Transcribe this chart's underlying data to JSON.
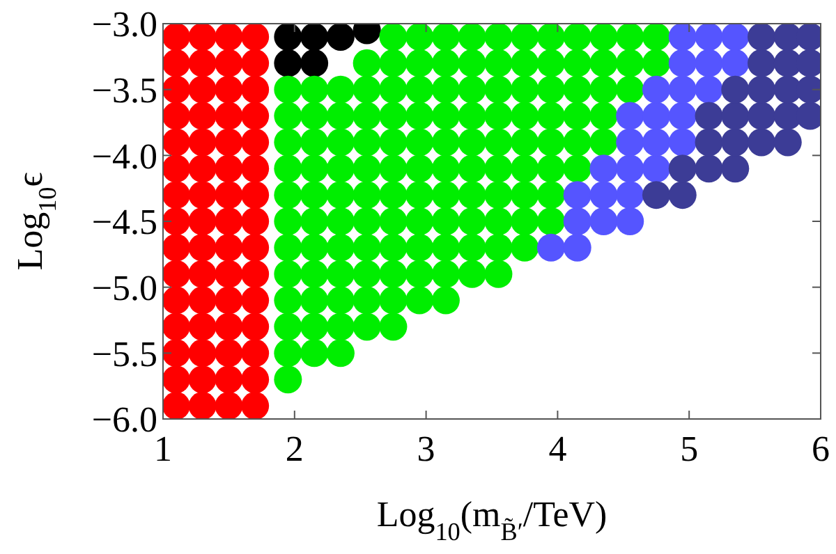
{
  "chart_data": {
    "type": "scatter",
    "xlabel": "Log$_{10}$(m$_{B̃′}$/TeV)",
    "ylabel": "Log$_{10}$ϵ",
    "xlim": [
      1,
      6
    ],
    "ylim": [
      -6,
      -3
    ],
    "xticks": [
      1,
      2,
      3,
      4,
      5,
      6
    ],
    "yticks": [
      {
        "value": -6,
        "label": "−6.0"
      },
      {
        "value": -5.5,
        "label": "−5.5"
      },
      {
        "value": -5,
        "label": "−5.0"
      },
      {
        "value": -4.5,
        "label": "−4.5"
      },
      {
        "value": -4,
        "label": "−4.0"
      },
      {
        "value": -3.5,
        "label": "−3.5"
      },
      {
        "value": -3,
        "label": "−3.0"
      }
    ],
    "marker": "circle",
    "grid": false,
    "series": [
      {
        "color": "#ff0000",
        "x": [
          1.1,
          1.1,
          1.1,
          1.1,
          1.1,
          1.1,
          1.1,
          1.1,
          1.1,
          1.1,
          1.1,
          1.1,
          1.1,
          1.1,
          1.1,
          1.3,
          1.3,
          1.3,
          1.3,
          1.3,
          1.3,
          1.3,
          1.3,
          1.3,
          1.3,
          1.3,
          1.3,
          1.3,
          1.3,
          1.3,
          1.5,
          1.5,
          1.5,
          1.5,
          1.5,
          1.5,
          1.5,
          1.5,
          1.5,
          1.5,
          1.5,
          1.5,
          1.5,
          1.5,
          1.5,
          1.7,
          1.7,
          1.7,
          1.7,
          1.7,
          1.7,
          1.7,
          1.7,
          1.7,
          1.7,
          1.7,
          1.7,
          1.7,
          1.7,
          1.7
        ],
        "values": [
          -5.9,
          -5.7,
          -5.5,
          -5.3,
          -5.1,
          -4.9,
          -4.7,
          -4.5,
          -4.3,
          -4.1,
          -3.9,
          -3.7,
          -3.5,
          -3.3,
          -3.1,
          -5.9,
          -5.7,
          -5.5,
          -5.3,
          -5.1,
          -4.9,
          -4.7,
          -4.5,
          -4.3,
          -4.1,
          -3.9,
          -3.7,
          -3.5,
          -3.3,
          -3.1,
          -5.9,
          -5.7,
          -5.5,
          -5.3,
          -5.1,
          -4.9,
          -4.7,
          -4.5,
          -4.3,
          -4.1,
          -3.9,
          -3.7,
          -3.5,
          -3.3,
          -3.1,
          -5.9,
          -5.7,
          -5.5,
          -5.3,
          -5.1,
          -4.9,
          -4.7,
          -4.5,
          -4.3,
          -4.1,
          -3.9,
          -3.7,
          -3.5,
          -3.3,
          -3.1
        ]
      },
      {
        "color": "#000000",
        "x": [
          1.95,
          1.95,
          2.15,
          2.15,
          2.35,
          2.55
        ],
        "values": [
          -3.1,
          -3.3,
          -3.1,
          -3.3,
          -3.1,
          -3.05
        ]
      },
      {
        "color": "#00ee00",
        "x": [
          1.95,
          1.95,
          1.95,
          1.95,
          1.95,
          1.95,
          1.95,
          1.95,
          1.95,
          1.95,
          1.95,
          1.95,
          2.15,
          2.15,
          2.15,
          2.15,
          2.15,
          2.15,
          2.15,
          2.15,
          2.15,
          2.15,
          2.15,
          2.35,
          2.35,
          2.35,
          2.35,
          2.35,
          2.35,
          2.35,
          2.35,
          2.35,
          2.35,
          2.35,
          2.55,
          2.55,
          2.55,
          2.55,
          2.55,
          2.55,
          2.55,
          2.55,
          2.55,
          2.55,
          2.55,
          2.75,
          2.75,
          2.75,
          2.75,
          2.75,
          2.75,
          2.75,
          2.75,
          2.75,
          2.75,
          2.75,
          2.75,
          2.95,
          2.95,
          2.95,
          2.95,
          2.95,
          2.95,
          2.95,
          2.95,
          2.95,
          2.95,
          2.95,
          3.15,
          3.15,
          3.15,
          3.15,
          3.15,
          3.15,
          3.15,
          3.15,
          3.15,
          3.15,
          3.15,
          3.35,
          3.35,
          3.35,
          3.35,
          3.35,
          3.35,
          3.35,
          3.35,
          3.35,
          3.35,
          3.55,
          3.55,
          3.55,
          3.55,
          3.55,
          3.55,
          3.55,
          3.55,
          3.55,
          3.55,
          3.75,
          3.75,
          3.75,
          3.75,
          3.75,
          3.75,
          3.75,
          3.75,
          3.75,
          3.95,
          3.95,
          3.95,
          3.95,
          3.95,
          3.95,
          3.95,
          3.95,
          4.15,
          4.15,
          4.15,
          4.15,
          4.15,
          4.15,
          4.35,
          4.35,
          4.35,
          4.35,
          4.35,
          4.55,
          4.55,
          4.55,
          4.75,
          4.75
        ],
        "values": [
          -5.7,
          -5.5,
          -5.3,
          -5.1,
          -4.9,
          -4.7,
          -4.5,
          -4.3,
          -4.1,
          -3.9,
          -3.7,
          -3.5,
          -5.5,
          -5.3,
          -5.1,
          -4.9,
          -4.7,
          -4.5,
          -4.3,
          -4.1,
          -3.9,
          -3.7,
          -3.5,
          -5.5,
          -5.3,
          -5.1,
          -4.9,
          -4.7,
          -4.5,
          -4.3,
          -4.1,
          -3.9,
          -3.7,
          -3.5,
          -5.3,
          -5.1,
          -4.9,
          -4.7,
          -4.5,
          -4.3,
          -4.1,
          -3.9,
          -3.7,
          -3.5,
          -3.3,
          -5.3,
          -5.1,
          -4.9,
          -4.7,
          -4.5,
          -4.3,
          -4.1,
          -3.9,
          -3.7,
          -3.5,
          -3.3,
          -3.1,
          -5.1,
          -4.9,
          -4.7,
          -4.5,
          -4.3,
          -4.1,
          -3.9,
          -3.7,
          -3.5,
          -3.3,
          -3.1,
          -5.1,
          -4.9,
          -4.7,
          -4.5,
          -4.3,
          -4.1,
          -3.9,
          -3.7,
          -3.5,
          -3.3,
          -3.1,
          -4.9,
          -4.7,
          -4.5,
          -4.3,
          -4.1,
          -3.9,
          -3.7,
          -3.5,
          -3.3,
          -3.1,
          -4.9,
          -4.7,
          -4.5,
          -4.3,
          -4.1,
          -3.9,
          -3.7,
          -3.5,
          -3.3,
          -3.1,
          -4.7,
          -4.5,
          -4.3,
          -4.1,
          -3.9,
          -3.7,
          -3.5,
          -3.3,
          -3.1,
          -4.5,
          -4.3,
          -4.1,
          -3.9,
          -3.7,
          -3.5,
          -3.3,
          -3.1,
          -4.1,
          -3.9,
          -3.7,
          -3.5,
          -3.3,
          -3.1,
          -3.9,
          -3.7,
          -3.5,
          -3.3,
          -3.1,
          -3.5,
          -3.3,
          -3.1,
          -3.3,
          -3.1
        ]
      },
      {
        "color": "#5555ff",
        "x": [
          3.95,
          4.15,
          4.15,
          4.15,
          4.35,
          4.35,
          4.35,
          4.55,
          4.55,
          4.55,
          4.55,
          4.55,
          4.75,
          4.75,
          4.75,
          4.75,
          4.95,
          4.95,
          4.95,
          4.95,
          4.95,
          5.15,
          5.15,
          5.15,
          5.35,
          5.35
        ],
        "values": [
          -4.7,
          -4.7,
          -4.5,
          -4.3,
          -4.5,
          -4.3,
          -4.1,
          -4.5,
          -4.3,
          -4.1,
          -3.9,
          -3.7,
          -4.1,
          -3.9,
          -3.7,
          -3.5,
          -3.9,
          -3.7,
          -3.5,
          -3.3,
          -3.1,
          -3.5,
          -3.3,
          -3.1,
          -3.3,
          -3.1
        ]
      },
      {
        "color": "#3c3c96",
        "x": [
          4.75,
          4.95,
          4.95,
          5.15,
          5.15,
          5.15,
          5.35,
          5.35,
          5.35,
          5.35,
          5.55,
          5.55,
          5.55,
          5.55,
          5.55,
          5.75,
          5.75,
          5.75,
          5.75,
          5.75,
          5.92,
          5.92,
          5.92,
          5.92
        ],
        "values": [
          -4.3,
          -4.3,
          -4.1,
          -4.1,
          -3.9,
          -3.7,
          -4.1,
          -3.9,
          -3.7,
          -3.5,
          -3.9,
          -3.7,
          -3.5,
          -3.3,
          -3.1,
          -3.9,
          -3.7,
          -3.5,
          -3.3,
          -3.1,
          -3.7,
          -3.5,
          -3.3,
          -3.1
        ]
      }
    ]
  }
}
